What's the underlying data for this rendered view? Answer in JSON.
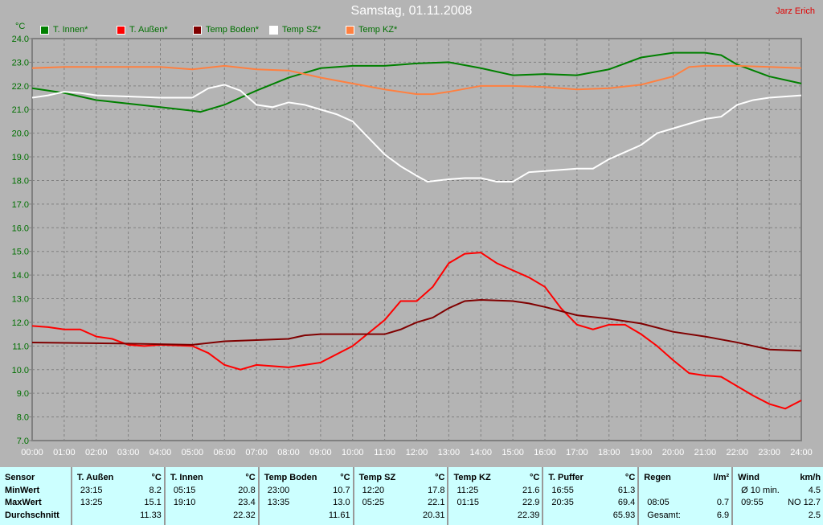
{
  "title": "Samstag, 01.11.2008",
  "author": "Jarz Erich",
  "colors": {
    "background": "#b4b4b4",
    "grid": "#808080",
    "table_bg": "#ccffff",
    "axis_label": "#007000"
  },
  "chart_data": {
    "type": "line",
    "ylabel": "°C",
    "ylim": [
      7,
      24
    ],
    "xlim": [
      "00:00",
      "24:00"
    ],
    "grid": true,
    "legend_position": "top",
    "yticks": [
      "24.0",
      "23.0",
      "22.0",
      "21.0",
      "20.0",
      "19.0",
      "18.0",
      "17.0",
      "16.0",
      "15.0",
      "14.0",
      "13.0",
      "12.0",
      "11.0",
      "10.0",
      "9.0",
      "8.0",
      "7.0"
    ],
    "xticks": [
      "00:00",
      "01:00",
      "02:00",
      "03:00",
      "04:00",
      "05:00",
      "06:00",
      "07:00",
      "08:00",
      "09:00",
      "10:00",
      "11:00",
      "12:00",
      "13:00",
      "14:00",
      "15:00",
      "16:00",
      "17:00",
      "18:00",
      "19:00",
      "20:00",
      "21:00",
      "22:00",
      "23:00",
      "24:00"
    ],
    "series": [
      {
        "name": "T. Innen*",
        "color": "#008000",
        "points": [
          [
            "00:00",
            21.9
          ],
          [
            "01:00",
            21.7
          ],
          [
            "02:00",
            21.4
          ],
          [
            "03:00",
            21.25
          ],
          [
            "04:00",
            21.1
          ],
          [
            "05:00",
            20.95
          ],
          [
            "05:15",
            20.9
          ],
          [
            "06:00",
            21.2
          ],
          [
            "07:00",
            21.8
          ],
          [
            "08:00",
            22.35
          ],
          [
            "09:00",
            22.75
          ],
          [
            "10:00",
            22.85
          ],
          [
            "11:00",
            22.85
          ],
          [
            "12:00",
            22.95
          ],
          [
            "13:00",
            23.0
          ],
          [
            "14:00",
            22.75
          ],
          [
            "15:00",
            22.45
          ],
          [
            "16:00",
            22.5
          ],
          [
            "17:00",
            22.45
          ],
          [
            "18:00",
            22.7
          ],
          [
            "19:00",
            23.2
          ],
          [
            "20:00",
            23.4
          ],
          [
            "21:00",
            23.4
          ],
          [
            "21:30",
            23.3
          ],
          [
            "22:00",
            22.9
          ],
          [
            "23:00",
            22.4
          ],
          [
            "24:00",
            22.1
          ]
        ]
      },
      {
        "name": "T. Außen*",
        "color": "#ff0000",
        "points": [
          [
            "00:00",
            11.85
          ],
          [
            "00:30",
            11.8
          ],
          [
            "01:00",
            11.7
          ],
          [
            "01:30",
            11.7
          ],
          [
            "02:00",
            11.4
          ],
          [
            "02:30",
            11.3
          ],
          [
            "03:00",
            11.05
          ],
          [
            "03:30",
            11.0
          ],
          [
            "04:00",
            11.05
          ],
          [
            "05:00",
            11.0
          ],
          [
            "05:30",
            10.7
          ],
          [
            "06:00",
            10.2
          ],
          [
            "06:30",
            10.0
          ],
          [
            "07:00",
            10.2
          ],
          [
            "07:30",
            10.15
          ],
          [
            "08:00",
            10.1
          ],
          [
            "09:00",
            10.3
          ],
          [
            "10:00",
            11.0
          ],
          [
            "11:00",
            12.1
          ],
          [
            "11:30",
            12.9
          ],
          [
            "12:00",
            12.9
          ],
          [
            "12:30",
            13.5
          ],
          [
            "13:00",
            14.5
          ],
          [
            "13:30",
            14.9
          ],
          [
            "14:00",
            14.95
          ],
          [
            "14:30",
            14.5
          ],
          [
            "15:00",
            14.2
          ],
          [
            "15:30",
            13.9
          ],
          [
            "16:00",
            13.5
          ],
          [
            "16:30",
            12.6
          ],
          [
            "17:00",
            11.9
          ],
          [
            "17:30",
            11.7
          ],
          [
            "18:00",
            11.9
          ],
          [
            "18:30",
            11.9
          ],
          [
            "19:00",
            11.5
          ],
          [
            "19:30",
            11.0
          ],
          [
            "20:00",
            10.4
          ],
          [
            "20:30",
            9.85
          ],
          [
            "21:00",
            9.75
          ],
          [
            "21:30",
            9.7
          ],
          [
            "22:00",
            9.3
          ],
          [
            "22:30",
            8.9
          ],
          [
            "23:00",
            8.55
          ],
          [
            "23:30",
            8.35
          ],
          [
            "24:00",
            8.7
          ]
        ]
      },
      {
        "name": "Temp Boden*",
        "color": "#800000",
        "points": [
          [
            "00:00",
            11.15
          ],
          [
            "03:00",
            11.1
          ],
          [
            "05:00",
            11.05
          ],
          [
            "06:00",
            11.2
          ],
          [
            "07:00",
            11.25
          ],
          [
            "08:00",
            11.3
          ],
          [
            "08:30",
            11.45
          ],
          [
            "09:00",
            11.5
          ],
          [
            "10:00",
            11.5
          ],
          [
            "11:00",
            11.5
          ],
          [
            "11:30",
            11.7
          ],
          [
            "12:00",
            12.0
          ],
          [
            "12:30",
            12.2
          ],
          [
            "13:00",
            12.6
          ],
          [
            "13:30",
            12.9
          ],
          [
            "14:00",
            12.95
          ],
          [
            "15:00",
            12.9
          ],
          [
            "15:30",
            12.8
          ],
          [
            "16:00",
            12.65
          ],
          [
            "17:00",
            12.3
          ],
          [
            "18:00",
            12.15
          ],
          [
            "19:00",
            11.95
          ],
          [
            "20:00",
            11.6
          ],
          [
            "21:00",
            11.4
          ],
          [
            "22:00",
            11.15
          ],
          [
            "23:00",
            10.85
          ],
          [
            "24:00",
            10.8
          ]
        ]
      },
      {
        "name": "Temp SZ*",
        "color": "#ffffff",
        "points": [
          [
            "00:00",
            21.5
          ],
          [
            "00:30",
            21.6
          ],
          [
            "01:00",
            21.75
          ],
          [
            "01:30",
            21.7
          ],
          [
            "02:00",
            21.6
          ],
          [
            "03:00",
            21.55
          ],
          [
            "04:00",
            21.5
          ],
          [
            "05:00",
            21.5
          ],
          [
            "05:30",
            21.9
          ],
          [
            "06:00",
            22.05
          ],
          [
            "06:30",
            21.8
          ],
          [
            "07:00",
            21.2
          ],
          [
            "07:30",
            21.1
          ],
          [
            "08:00",
            21.3
          ],
          [
            "08:30",
            21.2
          ],
          [
            "09:00",
            21.0
          ],
          [
            "09:30",
            20.8
          ],
          [
            "10:00",
            20.5
          ],
          [
            "10:30",
            19.8
          ],
          [
            "11:00",
            19.1
          ],
          [
            "11:30",
            18.6
          ],
          [
            "12:00",
            18.2
          ],
          [
            "12:20",
            17.95
          ],
          [
            "13:00",
            18.05
          ],
          [
            "13:30",
            18.1
          ],
          [
            "14:00",
            18.1
          ],
          [
            "14:30",
            17.95
          ],
          [
            "15:00",
            17.95
          ],
          [
            "15:30",
            18.35
          ],
          [
            "16:00",
            18.4
          ],
          [
            "17:00",
            18.5
          ],
          [
            "17:30",
            18.5
          ],
          [
            "18:00",
            18.9
          ],
          [
            "19:00",
            19.5
          ],
          [
            "19:30",
            20.0
          ],
          [
            "20:00",
            20.2
          ],
          [
            "20:30",
            20.4
          ],
          [
            "21:00",
            20.6
          ],
          [
            "21:30",
            20.7
          ],
          [
            "22:00",
            21.2
          ],
          [
            "22:30",
            21.4
          ],
          [
            "23:00",
            21.5
          ],
          [
            "24:00",
            21.6
          ]
        ]
      },
      {
        "name": "Temp KZ*",
        "color": "#ff8040",
        "points": [
          [
            "00:00",
            22.75
          ],
          [
            "01:00",
            22.8
          ],
          [
            "02:00",
            22.8
          ],
          [
            "04:00",
            22.8
          ],
          [
            "05:00",
            22.7
          ],
          [
            "06:00",
            22.85
          ],
          [
            "07:00",
            22.7
          ],
          [
            "08:00",
            22.65
          ],
          [
            "08:30",
            22.5
          ],
          [
            "09:00",
            22.35
          ],
          [
            "10:00",
            22.1
          ],
          [
            "11:00",
            21.85
          ],
          [
            "12:00",
            21.65
          ],
          [
            "12:30",
            21.65
          ],
          [
            "13:00",
            21.75
          ],
          [
            "14:00",
            22.0
          ],
          [
            "15:00",
            22.0
          ],
          [
            "16:00",
            21.95
          ],
          [
            "17:00",
            21.85
          ],
          [
            "18:00",
            21.9
          ],
          [
            "19:00",
            22.05
          ],
          [
            "20:00",
            22.4
          ],
          [
            "20:30",
            22.8
          ],
          [
            "21:00",
            22.85
          ],
          [
            "22:00",
            22.85
          ],
          [
            "23:00",
            22.8
          ],
          [
            "24:00",
            22.75
          ]
        ]
      }
    ]
  },
  "table": {
    "row_labels": [
      "Sensor",
      "MinWert",
      "MaxWert",
      "Durchschnitt"
    ],
    "columns": [
      {
        "name": "T. Außen",
        "unit": "°C",
        "rows": [
          [
            "23:15",
            "8.2"
          ],
          [
            "13:25",
            "15.1"
          ],
          [
            "",
            "11.33"
          ]
        ]
      },
      {
        "name": "T. Innen",
        "unit": "°C",
        "rows": [
          [
            "05:15",
            "20.8"
          ],
          [
            "19:10",
            "23.4"
          ],
          [
            "",
            "22.32"
          ]
        ]
      },
      {
        "name": "Temp Boden",
        "unit": "°C",
        "rows": [
          [
            "23:00",
            "10.7"
          ],
          [
            "13:35",
            "13.0"
          ],
          [
            "",
            "11.61"
          ]
        ]
      },
      {
        "name": "Temp SZ",
        "unit": "°C",
        "rows": [
          [
            "12:20",
            "17.8"
          ],
          [
            "05:25",
            "22.1"
          ],
          [
            "",
            "20.31"
          ]
        ]
      },
      {
        "name": "Temp KZ",
        "unit": "°C",
        "rows": [
          [
            "11:25",
            "21.6"
          ],
          [
            "01:15",
            "22.9"
          ],
          [
            "",
            "22.39"
          ]
        ]
      },
      {
        "name": "T. Puffer",
        "unit": "°C",
        "rows": [
          [
            "16:55",
            "61.3"
          ],
          [
            "20:35",
            "69.4"
          ],
          [
            "",
            "65.93"
          ]
        ]
      },
      {
        "name": "Regen",
        "unit": "l/m²",
        "rows": [
          [
            "",
            ""
          ],
          [
            "08:05",
            "0.7"
          ],
          [
            "Gesamt:",
            "6.9"
          ]
        ]
      },
      {
        "name": "Wind",
        "unit": "km/h",
        "rows": [
          [
            "Ø 10 min.",
            "4.5"
          ],
          [
            "09:55",
            "NO 12.7"
          ],
          [
            "",
            "2.5"
          ]
        ]
      }
    ]
  }
}
